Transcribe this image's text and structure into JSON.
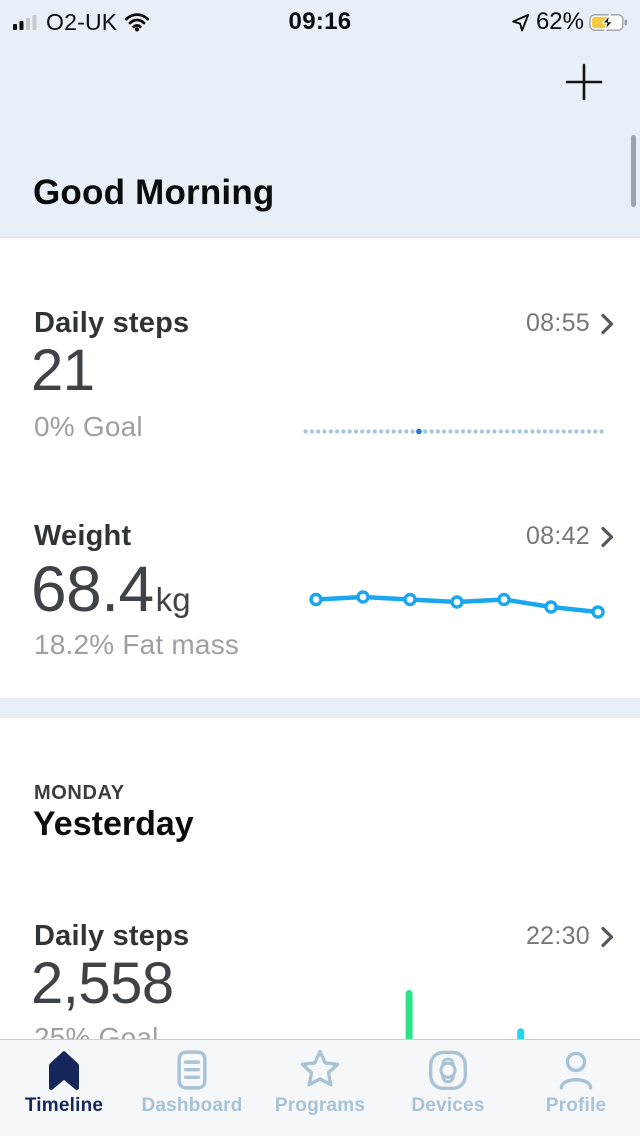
{
  "theme": {
    "header_bg": "#E9EFF7",
    "card_bg": "#FFFFFF",
    "tabbar_bg": "#F6F7F8",
    "active_tab_color": "#15265B",
    "inactive_tab_color": "#A8C2D6",
    "title_color": "#2F3438",
    "value_color": "#3F4347",
    "muted_color": "#9DA0A3",
    "time_color": "#75787B",
    "battery_charge_color": "#F5C843"
  },
  "status_bar": {
    "carrier": "O2-UK",
    "time": "09:16",
    "battery_percent": "62%",
    "icons": [
      "cellular-signal-2-of-4",
      "wifi-full",
      "location-arrow",
      "battery-charging"
    ]
  },
  "header": {
    "greeting": "Good Morning",
    "add_icon": "plus"
  },
  "today": {
    "steps_card": {
      "title": "Daily steps",
      "time": "08:55",
      "value": "21",
      "goal": "0% Goal"
    },
    "weight_card": {
      "title": "Weight",
      "time": "08:42",
      "value": "68.4",
      "unit": "kg",
      "fat_mass": "18.2% Fat mass"
    }
  },
  "yesterday": {
    "weekday": "MONDAY",
    "title": "Yesterday",
    "steps_card": {
      "title": "Daily steps",
      "time": "22:30",
      "value": "2,558",
      "goal": "25% Goal"
    }
  },
  "tab_bar": {
    "items": [
      {
        "label": "Timeline",
        "icon": "timeline-icon",
        "active": true
      },
      {
        "label": "Dashboard",
        "icon": "dashboard-icon",
        "active": false
      },
      {
        "label": "Programs",
        "icon": "programs-icon",
        "active": false
      },
      {
        "label": "Devices",
        "icon": "devices-icon",
        "active": false
      },
      {
        "label": "Profile",
        "icon": "profile-icon",
        "active": false
      }
    ]
  },
  "chart_data": [
    {
      "type": "line",
      "name": "today-steps-progress",
      "style": "dotted",
      "description": "Flat dotted goal-progress track for today's steps; one highlighted dot marks current progress (~38% along the track).",
      "dot_count": 48,
      "highlight_index": 18,
      "dot_color": "#A9C4DB",
      "highlight_color": "#1576E8"
    },
    {
      "type": "line",
      "name": "weight-trend",
      "x": [
        1,
        2,
        3,
        4,
        5,
        6,
        7
      ],
      "values_kg": [
        68.9,
        69.0,
        68.9,
        68.8,
        68.9,
        68.6,
        68.4
      ],
      "ylim": [
        68.3,
        69.1
      ],
      "line_color": "#1BA7F0",
      "marker": "open-circle",
      "grid": false,
      "legend": "none"
    },
    {
      "type": "bar",
      "name": "yesterday-steps-activity",
      "description": "Sparse activity spike bars across yesterday; baseline clipped by the tab bar.",
      "bars": [
        {
          "pos_frac": 0.31,
          "height_frac": 1.0,
          "color": "#2CE28B"
        },
        {
          "pos_frac": 0.67,
          "height_frac": 0.22,
          "color": "#25D5EC"
        }
      ]
    }
  ]
}
